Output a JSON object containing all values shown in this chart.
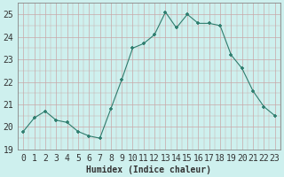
{
  "x": [
    0,
    1,
    2,
    3,
    4,
    5,
    6,
    7,
    8,
    9,
    10,
    11,
    12,
    13,
    14,
    15,
    16,
    17,
    18,
    19,
    20,
    21,
    22,
    23
  ],
  "y": [
    19.8,
    20.4,
    20.7,
    20.3,
    20.2,
    19.8,
    19.6,
    19.5,
    20.8,
    22.1,
    23.5,
    23.7,
    24.1,
    25.1,
    24.4,
    25.0,
    24.6,
    24.6,
    24.5,
    23.2,
    22.6,
    21.6,
    20.9,
    20.5
  ],
  "line_color": "#2e7d6e",
  "marker_color": "#2e7d6e",
  "bg_color": "#cef0ee",
  "grid_color": "#c8a8a8",
  "axis_color": "#888888",
  "xlabel": "Humidex (Indice chaleur)",
  "ylim": [
    19,
    25.5
  ],
  "xlim": [
    -0.5,
    23.5
  ],
  "yticks": [
    19,
    20,
    21,
    22,
    23,
    24,
    25
  ],
  "xticks": [
    0,
    1,
    2,
    3,
    4,
    5,
    6,
    7,
    8,
    9,
    10,
    11,
    12,
    13,
    14,
    15,
    16,
    17,
    18,
    19,
    20,
    21,
    22,
    23
  ],
  "xtick_labels": [
    "0",
    "1",
    "2",
    "3",
    "4",
    "5",
    "6",
    "7",
    "8",
    "9",
    "10",
    "11",
    "12",
    "13",
    "14",
    "15",
    "16",
    "17",
    "18",
    "19",
    "20",
    "21",
    "22",
    "23"
  ],
  "font_size_xlabel": 7,
  "font_size_ticks": 7,
  "title_color": "#333333"
}
